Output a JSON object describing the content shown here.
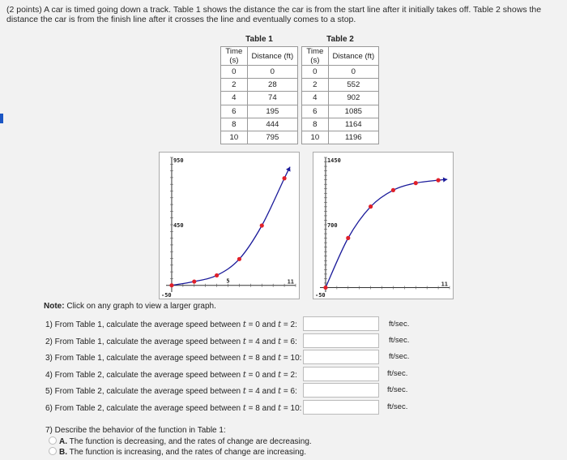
{
  "intro": "(2 points) A car is timed going down a track. Table 1 shows the distance the car is from the start line after it initially takes off. Table 2 shows the distance the car is from the finish line after it crosses the line and eventually comes to a stop.",
  "table1": {
    "caption": "Table 1",
    "headers": [
      "Time (s)",
      "Distance (ft)"
    ],
    "rows": [
      [
        "0",
        "0"
      ],
      [
        "2",
        "28"
      ],
      [
        "4",
        "74"
      ],
      [
        "6",
        "195"
      ],
      [
        "8",
        "444"
      ],
      [
        "10",
        "795"
      ]
    ]
  },
  "table2": {
    "caption": "Table 2",
    "headers": [
      "Time (s)",
      "Distance (ft)"
    ],
    "rows": [
      [
        "0",
        "0"
      ],
      [
        "2",
        "552"
      ],
      [
        "4",
        "902"
      ],
      [
        "6",
        "1085"
      ],
      [
        "8",
        "1164"
      ],
      [
        "10",
        "1196"
      ]
    ]
  },
  "graph1": {
    "y_top_label": "950",
    "y_mid_label": "450",
    "y_bottom_label": "-50",
    "x_mid_label": "5",
    "x_right_label": "11",
    "x_left_label": "-50",
    "xlim": [
      -0.5,
      11
    ],
    "ylim": [
      -50,
      950
    ],
    "points": [
      [
        0,
        0
      ],
      [
        2,
        28
      ],
      [
        4,
        74
      ],
      [
        6,
        195
      ],
      [
        8,
        444
      ],
      [
        10,
        795
      ]
    ],
    "curve_color": "#1a1a9a",
    "point_color": "#e0202a"
  },
  "graph2": {
    "y_top_label": "1450",
    "y_mid_label": "700",
    "y_bottom_label": "-50",
    "x_right_label": "11",
    "xlim": [
      -0.5,
      11
    ],
    "ylim": [
      -50,
      1450
    ],
    "points": [
      [
        0,
        0
      ],
      [
        2,
        552
      ],
      [
        4,
        902
      ],
      [
        6,
        1085
      ],
      [
        8,
        1164
      ],
      [
        10,
        1196
      ]
    ],
    "curve_color": "#1a1a9a",
    "point_color": "#e0202a"
  },
  "note": {
    "bold": "Note:",
    "text": " Click on any graph to view a larger graph."
  },
  "questions": [
    {
      "prefix": "1) From Table 1, calculate the average speed between ",
      "a": "0",
      "b": "2",
      "unit": "ft/sec."
    },
    {
      "prefix": "2) From Table 1, calculate the average speed between ",
      "a": "4",
      "b": "6",
      "unit": "ft/sec."
    },
    {
      "prefix": "3) From Table 1, calculate the average speed between ",
      "a": "8",
      "b": "10",
      "unit": "ft/sec."
    },
    {
      "prefix": "4) From Table 2, calculate the average speed between ",
      "a": "0",
      "b": "2",
      "unit": "ft/sec."
    },
    {
      "prefix": "5) From Table 2, calculate the average speed between ",
      "a": "4",
      "b": "6",
      "unit": "ft/sec."
    },
    {
      "prefix": "6) From Table 2, calculate the average speed between ",
      "a": "8",
      "b": "10",
      "unit": "ft/sec."
    }
  ],
  "q7": {
    "prompt": "7) Describe the behavior of the function in Table 1:",
    "options": [
      {
        "letter": "A.",
        "text": " The function is decreasing, and the rates of change are decreasing."
      },
      {
        "letter": "B.",
        "text": " The function is increasing, and the rates of change are increasing."
      }
    ]
  }
}
